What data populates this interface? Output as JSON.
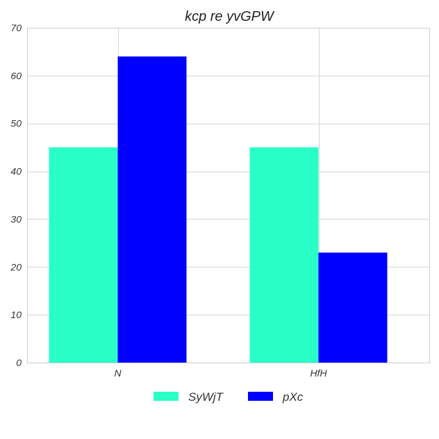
{
  "chart_data": {
    "type": "bar",
    "title": "kcp re yvGPW",
    "xlabel": "",
    "ylabel": "",
    "categories": [
      "N",
      "HfH"
    ],
    "series": [
      {
        "name": "SyWjT",
        "values": [
          45,
          45
        ],
        "color": "#2affc8"
      },
      {
        "name": "pXc",
        "values": [
          64,
          23
        ],
        "color": "#0000ff"
      }
    ],
    "ylim": [
      0,
      70
    ],
    "yticks": [
      "0",
      "10",
      "20",
      "30",
      "40",
      "50",
      "60",
      "70"
    ],
    "grid": true,
    "legend_position": "bottom-center"
  }
}
